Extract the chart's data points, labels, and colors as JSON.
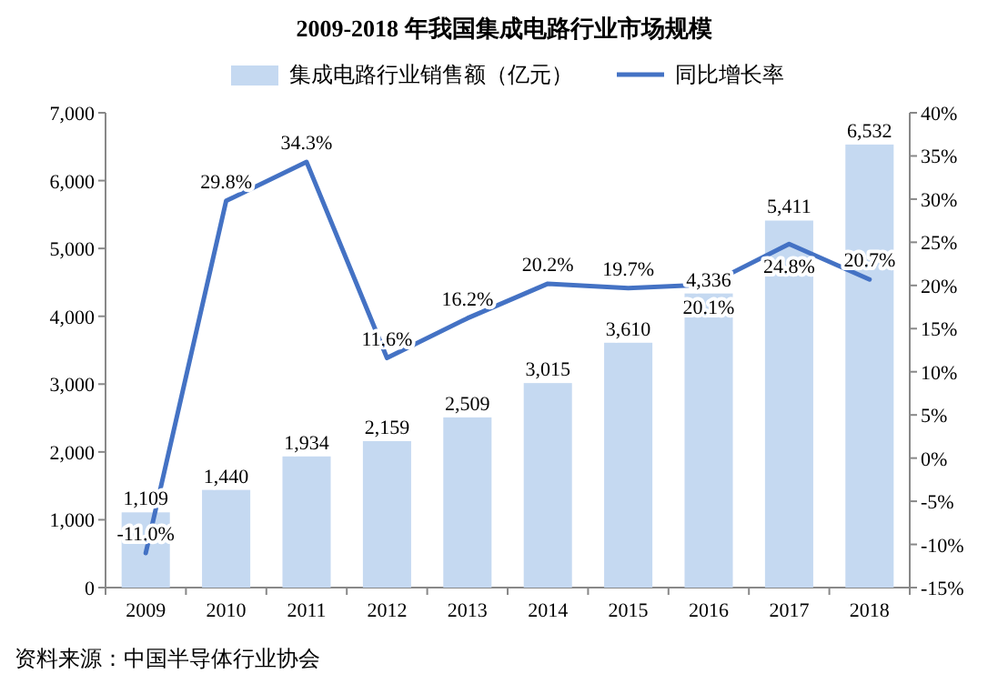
{
  "chart_data": {
    "type": "bar",
    "title": "2009-2018 年我国集成电路行业市场规模",
    "categories": [
      "2009",
      "2010",
      "2011",
      "2012",
      "2013",
      "2014",
      "2015",
      "2016",
      "2017",
      "2018"
    ],
    "series": [
      {
        "name": "集成电路行业销售额（亿元）",
        "color": "#c5d9f1",
        "values": [
          1109,
          1440,
          1934,
          2159,
          2509,
          3015,
          3610,
          4336,
          5411,
          6532
        ],
        "value_labels": [
          "1,109",
          "1,440",
          "1,934",
          "2,159",
          "2,509",
          "3,015",
          "3,610",
          "4,336",
          "5,411",
          "6,532"
        ]
      },
      {
        "name": "同比增长率",
        "type": "line",
        "axis": "y2",
        "color": "#4472c4",
        "values": [
          -11.0,
          29.8,
          34.3,
          11.6,
          16.2,
          20.2,
          19.7,
          20.1,
          24.8,
          20.7
        ],
        "value_labels": [
          "-11.0%",
          "29.8%",
          "34.3%",
          "11.6%",
          "16.2%",
          "20.2%",
          "19.7%",
          "20.1%",
          "24.8%",
          "20.7%"
        ]
      }
    ],
    "ylim": [
      0,
      7000
    ],
    "yticks": [
      0,
      {
        "value": 1000,
        "label": "1,000"
      },
      {
        "value": 2000,
        "label": "2,000"
      },
      {
        "value": 3000,
        "label": "3,000"
      },
      {
        "value": 4000,
        "label": "4,000"
      },
      {
        "value": 5000,
        "label": "5,000"
      },
      {
        "value": 6000,
        "label": "6,000"
      },
      {
        "value": 7000,
        "label": "7,000"
      }
    ],
    "y2lim": [
      -15,
      40
    ],
    "y2ticks": [
      {
        "value": -15,
        "label": "-15%"
      },
      {
        "value": -10,
        "label": "-10%"
      },
      {
        "value": -5,
        "label": "-5%"
      },
      {
        "value": 0,
        "label": "0%"
      },
      {
        "value": 5,
        "label": "5%"
      },
      {
        "value": 10,
        "label": "10%"
      },
      {
        "value": 15,
        "label": "15%"
      },
      {
        "value": 20,
        "label": "20%"
      },
      {
        "value": 25,
        "label": "25%"
      },
      {
        "value": 30,
        "label": "30%"
      },
      {
        "value": 35,
        "label": "35%"
      },
      {
        "value": 40,
        "label": "40%"
      }
    ],
    "legend": "top",
    "annotations": [
      "资料来源：中国半导体行业协会"
    ]
  }
}
